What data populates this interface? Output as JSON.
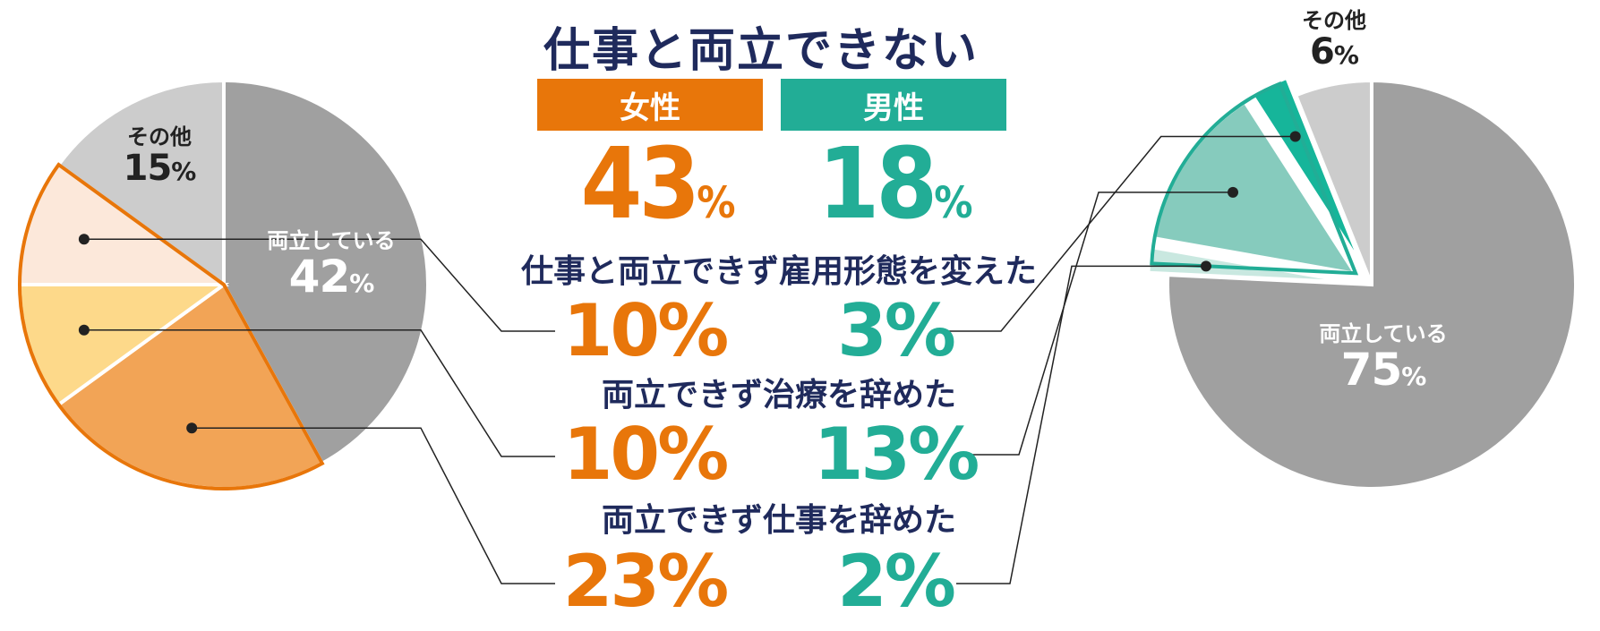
{
  "title": "仕事と両立できない",
  "chart_data": [
    {
      "type": "pie",
      "name": "女性",
      "color": "#e8760a",
      "total_label": "43",
      "slices": [
        {
          "label": "両立している",
          "value": 42,
          "color": "#a0a0a0"
        },
        {
          "label": "両立できず仕事を辞めた",
          "value": 23,
          "color": "#f2a456"
        },
        {
          "label": "両立できず治療を辞めた",
          "value": 10,
          "color": "#fdd98a"
        },
        {
          "label": "仕事と両立できず雇用形態を変えた",
          "value": 10,
          "color": "#fce8da"
        },
        {
          "label": "その他",
          "value": 15,
          "color": "#cccccc"
        }
      ]
    },
    {
      "type": "pie",
      "name": "男性",
      "color": "#22ad96",
      "total_label": "18",
      "slices": [
        {
          "label": "両立している",
          "value": 75,
          "color": "#a0a0a0"
        },
        {
          "label": "両立できず仕事を辞めた",
          "value": 2,
          "color": "#c9e8e0"
        },
        {
          "label": "両立できず治療を辞めた",
          "value": 13,
          "color": "#86cbbd"
        },
        {
          "label": "仕事と両立できず雇用形態を変えた",
          "value": 3,
          "color": "#16b59a"
        },
        {
          "label": "その他",
          "value": 6,
          "color": "#cccccc"
        }
      ]
    }
  ],
  "labels": {
    "female": "女性",
    "male": "男性",
    "unit": "%",
    "female_total": "43",
    "male_total": "18",
    "pie_left": {
      "ryoritsu": "両立している",
      "ryoritsu_val": "42",
      "other": "その他",
      "other_val": "15"
    },
    "pie_right": {
      "ryoritsu": "両立している",
      "ryoritsu_val": "75",
      "other": "その他",
      "other_val": "6"
    }
  },
  "rows": [
    {
      "label": "仕事と両立できず雇用形態を変えた",
      "female": "10%",
      "male": "3%"
    },
    {
      "label": "両立できず治療を辞めた",
      "female": "10%",
      "male": "13%"
    },
    {
      "label": "両立できず仕事を辞めた",
      "female": "23%",
      "male": "2%"
    }
  ]
}
